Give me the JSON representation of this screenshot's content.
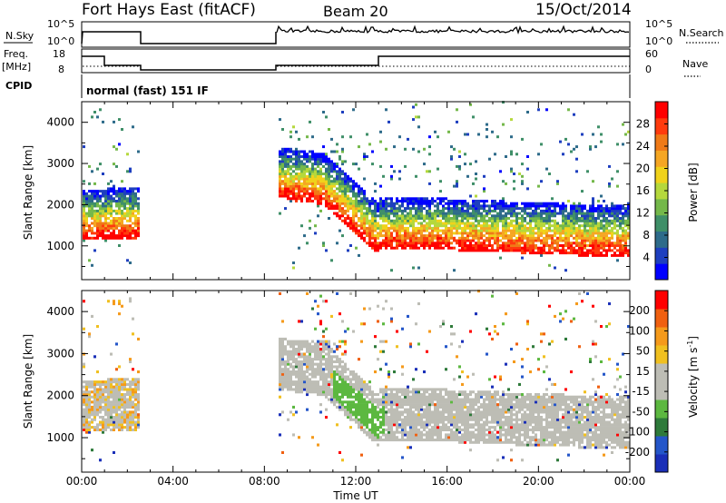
{
  "header": {
    "title": "Fort Hays East (fitACF)",
    "beam": "Beam 20",
    "date": "15/Oct/2014"
  },
  "status": {
    "nsky_label": "N.Sky",
    "nsky_ticks": [
      "10^5",
      "10^0"
    ],
    "nsearch_label": "N.Search",
    "nsearch_ticks": [
      "10^5",
      "10^0"
    ],
    "freq_label": "Freq.",
    "freq_unit": "[MHz]",
    "freq_ticks": [
      "18",
      "8"
    ],
    "nave_label": "Nave",
    "nave_ticks": [
      "60",
      "0"
    ],
    "cpid_label": "CPID",
    "cpid_value": "normal (fast) 151 IF"
  },
  "colors": {
    "power_scale": [
      "#0000ff",
      "#1e3fbf",
      "#2e6b8a",
      "#3f8f68",
      "#74b84a",
      "#b5d83c",
      "#f0d21b",
      "#f5a623",
      "#f07a17",
      "#ff3b0d",
      "#ff0000"
    ],
    "velocity_scale": [
      "#1a2fb8",
      "#2456c9",
      "#2e7a3a",
      "#5cb840",
      "#bdbdb5",
      "#bdbdb5",
      "#f0c020",
      "#f59a1b",
      "#f06010",
      "#ff0000"
    ]
  },
  "chart_data": [
    {
      "type": "heatmap",
      "name": "power",
      "ylabel": "Slant Range [km]",
      "xlabel": "Time UT",
      "x_ticks": [
        "00:00",
        "04:00",
        "08:00",
        "12:00",
        "16:00",
        "20:00",
        "00:00"
      ],
      "y_ticks": [
        1000,
        2000,
        3000,
        4000
      ],
      "xlim_hours": [
        0,
        24
      ],
      "ylim_km": [
        180,
        4500
      ],
      "colorbar": {
        "label": "Power [dB]",
        "ticks": [
          "28",
          "24",
          "20",
          "16",
          "12",
          "8",
          "4"
        ],
        "range": [
          0,
          30
        ]
      },
      "data_gaps_hours": [
        [
          2.5,
          8.6
        ]
      ]
    },
    {
      "type": "heatmap",
      "name": "velocity",
      "ylabel": "Slant Range [km]",
      "xlabel": "Time UT",
      "x_ticks": [
        "00:00",
        "04:00",
        "08:00",
        "12:00",
        "16:00",
        "20:00",
        "00:00"
      ],
      "y_ticks": [
        1000,
        2000,
        3000,
        4000
      ],
      "xlim_hours": [
        0,
        24
      ],
      "ylim_km": [
        180,
        4500
      ],
      "colorbar": {
        "label": "Velocity [m s",
        "label_sup": "-1",
        "label_close": "]",
        "ticks": [
          "200",
          "100",
          "50",
          "15",
          "-15",
          "-50",
          "-100",
          "-200"
        ],
        "range": [
          -250,
          250
        ]
      },
      "data_gaps_hours": [
        [
          2.5,
          8.6
        ]
      ]
    }
  ]
}
